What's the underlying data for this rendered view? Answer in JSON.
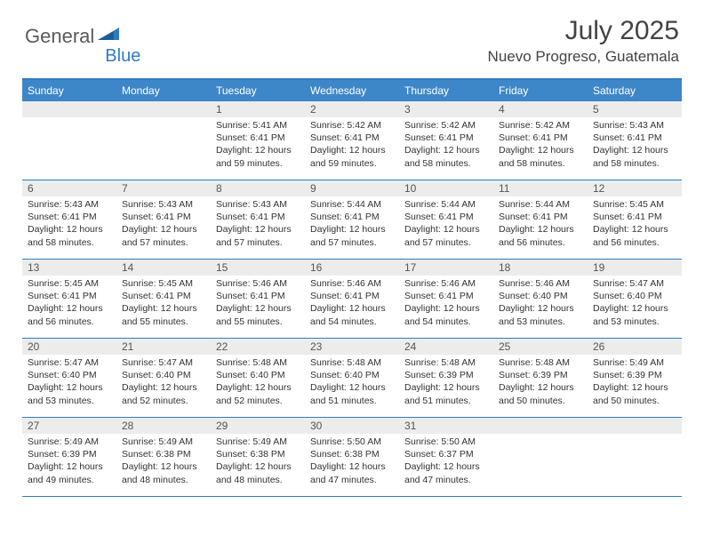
{
  "logo": {
    "text1": "General",
    "text2": "Blue"
  },
  "title": "July 2025",
  "location": "Nuevo Progreso, Guatemala",
  "colors": {
    "header_bg": "#3d87c9",
    "border": "#2f7bc1",
    "numrow_bg": "#ececec",
    "text": "#333333",
    "logo_gray": "#5a5a5a",
    "logo_blue": "#2f7bc1"
  },
  "day_headers": [
    "Sunday",
    "Monday",
    "Tuesday",
    "Wednesday",
    "Thursday",
    "Friday",
    "Saturday"
  ],
  "weeks": [
    [
      {
        "empty": true
      },
      {
        "empty": true
      },
      {
        "num": "1",
        "sunrise": "5:41 AM",
        "sunset": "6:41 PM",
        "daylight": "12 hours and 59 minutes."
      },
      {
        "num": "2",
        "sunrise": "5:42 AM",
        "sunset": "6:41 PM",
        "daylight": "12 hours and 59 minutes."
      },
      {
        "num": "3",
        "sunrise": "5:42 AM",
        "sunset": "6:41 PM",
        "daylight": "12 hours and 58 minutes."
      },
      {
        "num": "4",
        "sunrise": "5:42 AM",
        "sunset": "6:41 PM",
        "daylight": "12 hours and 58 minutes."
      },
      {
        "num": "5",
        "sunrise": "5:43 AM",
        "sunset": "6:41 PM",
        "daylight": "12 hours and 58 minutes."
      }
    ],
    [
      {
        "num": "6",
        "sunrise": "5:43 AM",
        "sunset": "6:41 PM",
        "daylight": "12 hours and 58 minutes."
      },
      {
        "num": "7",
        "sunrise": "5:43 AM",
        "sunset": "6:41 PM",
        "daylight": "12 hours and 57 minutes."
      },
      {
        "num": "8",
        "sunrise": "5:43 AM",
        "sunset": "6:41 PM",
        "daylight": "12 hours and 57 minutes."
      },
      {
        "num": "9",
        "sunrise": "5:44 AM",
        "sunset": "6:41 PM",
        "daylight": "12 hours and 57 minutes."
      },
      {
        "num": "10",
        "sunrise": "5:44 AM",
        "sunset": "6:41 PM",
        "daylight": "12 hours and 57 minutes."
      },
      {
        "num": "11",
        "sunrise": "5:44 AM",
        "sunset": "6:41 PM",
        "daylight": "12 hours and 56 minutes."
      },
      {
        "num": "12",
        "sunrise": "5:45 AM",
        "sunset": "6:41 PM",
        "daylight": "12 hours and 56 minutes."
      }
    ],
    [
      {
        "num": "13",
        "sunrise": "5:45 AM",
        "sunset": "6:41 PM",
        "daylight": "12 hours and 56 minutes."
      },
      {
        "num": "14",
        "sunrise": "5:45 AM",
        "sunset": "6:41 PM",
        "daylight": "12 hours and 55 minutes."
      },
      {
        "num": "15",
        "sunrise": "5:46 AM",
        "sunset": "6:41 PM",
        "daylight": "12 hours and 55 minutes."
      },
      {
        "num": "16",
        "sunrise": "5:46 AM",
        "sunset": "6:41 PM",
        "daylight": "12 hours and 54 minutes."
      },
      {
        "num": "17",
        "sunrise": "5:46 AM",
        "sunset": "6:41 PM",
        "daylight": "12 hours and 54 minutes."
      },
      {
        "num": "18",
        "sunrise": "5:46 AM",
        "sunset": "6:40 PM",
        "daylight": "12 hours and 53 minutes."
      },
      {
        "num": "19",
        "sunrise": "5:47 AM",
        "sunset": "6:40 PM",
        "daylight": "12 hours and 53 minutes."
      }
    ],
    [
      {
        "num": "20",
        "sunrise": "5:47 AM",
        "sunset": "6:40 PM",
        "daylight": "12 hours and 53 minutes."
      },
      {
        "num": "21",
        "sunrise": "5:47 AM",
        "sunset": "6:40 PM",
        "daylight": "12 hours and 52 minutes."
      },
      {
        "num": "22",
        "sunrise": "5:48 AM",
        "sunset": "6:40 PM",
        "daylight": "12 hours and 52 minutes."
      },
      {
        "num": "23",
        "sunrise": "5:48 AM",
        "sunset": "6:40 PM",
        "daylight": "12 hours and 51 minutes."
      },
      {
        "num": "24",
        "sunrise": "5:48 AM",
        "sunset": "6:39 PM",
        "daylight": "12 hours and 51 minutes."
      },
      {
        "num": "25",
        "sunrise": "5:48 AM",
        "sunset": "6:39 PM",
        "daylight": "12 hours and 50 minutes."
      },
      {
        "num": "26",
        "sunrise": "5:49 AM",
        "sunset": "6:39 PM",
        "daylight": "12 hours and 50 minutes."
      }
    ],
    [
      {
        "num": "27",
        "sunrise": "5:49 AM",
        "sunset": "6:39 PM",
        "daylight": "12 hours and 49 minutes."
      },
      {
        "num": "28",
        "sunrise": "5:49 AM",
        "sunset": "6:38 PM",
        "daylight": "12 hours and 48 minutes."
      },
      {
        "num": "29",
        "sunrise": "5:49 AM",
        "sunset": "6:38 PM",
        "daylight": "12 hours and 48 minutes."
      },
      {
        "num": "30",
        "sunrise": "5:50 AM",
        "sunset": "6:38 PM",
        "daylight": "12 hours and 47 minutes."
      },
      {
        "num": "31",
        "sunrise": "5:50 AM",
        "sunset": "6:37 PM",
        "daylight": "12 hours and 47 minutes."
      },
      {
        "empty": true
      },
      {
        "empty": true
      }
    ]
  ],
  "labels": {
    "sunrise": "Sunrise:",
    "sunset": "Sunset:",
    "daylight": "Daylight:"
  }
}
